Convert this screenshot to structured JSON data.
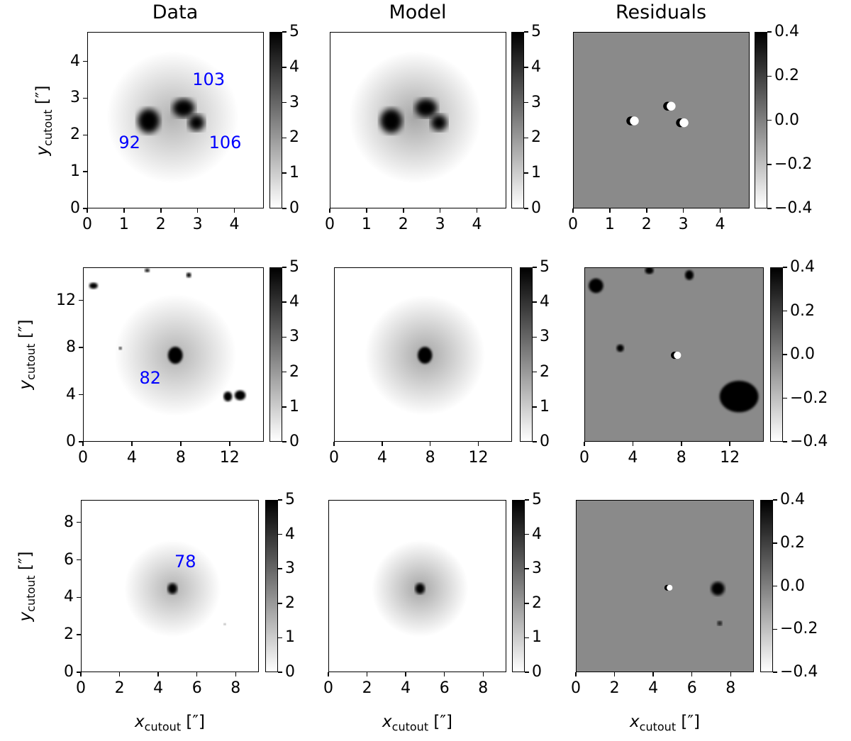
{
  "columns": [
    "Data",
    "Model",
    "Residuals"
  ],
  "axis": {
    "y_var": "y",
    "x_var": "x",
    "sub": "cutout",
    "unit": "[″]"
  },
  "colors": {
    "label": "#0000ff",
    "residual_bg": "#8a8a8a"
  },
  "chart_data": {
    "type": "heatmap",
    "rows": [
      {
        "xticks": [
          "0",
          "1",
          "2",
          "3",
          "4"
        ],
        "xvals": [
          0,
          1,
          2,
          3,
          4
        ],
        "yticks": [
          "0",
          "1",
          "2",
          "3",
          "4"
        ],
        "yvals": [
          0,
          1,
          2,
          3,
          4
        ],
        "range": [
          0,
          4.8
        ],
        "labels": [
          {
            "text": "103",
            "x": 3.3,
            "y": 3.5
          },
          {
            "text": "92",
            "x": 1.15,
            "y": 1.8
          },
          {
            "text": "106",
            "x": 3.75,
            "y": 1.8
          }
        ],
        "sources": [
          {
            "x": 1.65,
            "y": 2.4,
            "rx": 0.3,
            "ry": 0.33
          },
          {
            "x": 2.6,
            "y": 2.75,
            "rx": 0.3,
            "ry": 0.25
          },
          {
            "x": 2.95,
            "y": 2.35,
            "rx": 0.22,
            "ry": 0.22
          }
        ],
        "residual_spots": [
          {
            "x": 1.6,
            "y": 2.4,
            "r": 0.12
          },
          {
            "x": 2.6,
            "y": 2.8,
            "r": 0.12
          },
          {
            "x": 2.95,
            "y": 2.35,
            "r": 0.12
          }
        ],
        "halo": {
          "x": 2.3,
          "y": 2.5,
          "r": 1.8
        }
      },
      {
        "xticks": [
          "0",
          "4",
          "8",
          "12"
        ],
        "xvals": [
          0,
          4,
          8,
          12
        ],
        "yticks": [
          "0",
          "4",
          "8",
          "12"
        ],
        "yvals": [
          0,
          4,
          8,
          12
        ],
        "range": [
          0,
          14.8
        ],
        "labels": [
          {
            "text": "82",
            "x": 5.5,
            "y": 5.4
          }
        ],
        "sources": [
          {
            "x": 7.5,
            "y": 7.4,
            "rx": 0.6,
            "ry": 0.7
          }
        ],
        "extra_sources": [
          {
            "x": 11.8,
            "y": 3.9,
            "rx": 0.35,
            "ry": 0.4
          },
          {
            "x": 12.8,
            "y": 4.0,
            "rx": 0.45,
            "ry": 0.4
          },
          {
            "x": 0.8,
            "y": 13.3,
            "rx": 0.35,
            "ry": 0.25
          },
          {
            "x": 5.2,
            "y": 14.6,
            "rx": 0.2,
            "ry": 0.15
          },
          {
            "x": 8.6,
            "y": 14.2,
            "rx": 0.2,
            "ry": 0.2
          },
          {
            "x": 3.0,
            "y": 8.0,
            "rx": 0.12,
            "ry": 0.12
          }
        ],
        "residual_spots": [
          {
            "x": 7.5,
            "y": 7.4,
            "r": 0.3
          }
        ],
        "residual_extra": [
          {
            "x": 12.7,
            "y": 3.9,
            "rx": 1.6,
            "ry": 1.3
          },
          {
            "x": 0.9,
            "y": 13.3,
            "rx": 0.6,
            "ry": 0.6
          },
          {
            "x": 5.3,
            "y": 14.6,
            "rx": 0.35,
            "ry": 0.3
          },
          {
            "x": 8.6,
            "y": 14.2,
            "rx": 0.35,
            "ry": 0.4
          },
          {
            "x": 2.9,
            "y": 8.0,
            "rx": 0.3,
            "ry": 0.3
          }
        ],
        "halo": {
          "x": 7.5,
          "y": 7.4,
          "r": 5
        }
      },
      {
        "xticks": [
          "0",
          "2",
          "4",
          "6",
          "8"
        ],
        "xvals": [
          0,
          2,
          4,
          6,
          8
        ],
        "yticks": [
          "0",
          "2",
          "4",
          "6",
          "8"
        ],
        "yvals": [
          0,
          2,
          4,
          6,
          8
        ],
        "range": [
          0,
          9.2
        ],
        "labels": [
          {
            "text": "78",
            "x": 5.4,
            "y": 5.9
          }
        ],
        "sources": [
          {
            "x": 4.7,
            "y": 4.5,
            "rx": 0.25,
            "ry": 0.28
          }
        ],
        "extra_sources": [
          {
            "x": 7.4,
            "y": 2.6,
            "rx": 0.05,
            "ry": 0.05
          }
        ],
        "residual_spots": [
          {
            "x": 4.75,
            "y": 4.55,
            "r": 0.15
          }
        ],
        "residual_extra": [
          {
            "x": 7.3,
            "y": 4.5,
            "rx": 0.35,
            "ry": 0.35
          },
          {
            "x": 7.4,
            "y": 2.65,
            "rx": 0.12,
            "ry": 0.12
          }
        ],
        "halo": {
          "x": 4.7,
          "y": 4.5,
          "r": 2.5
        }
      }
    ],
    "colorbars": {
      "data_model": {
        "ticks": [
          "0",
          "1",
          "2",
          "3",
          "4",
          "5"
        ],
        "vals": [
          0,
          1,
          2,
          3,
          4,
          5
        ],
        "range": [
          0,
          5
        ]
      },
      "residuals": {
        "ticks": [
          "−0.4",
          "−0.2",
          "0.0",
          "0.2",
          "0.4"
        ],
        "vals": [
          -0.4,
          -0.2,
          0,
          0.2,
          0.4
        ],
        "range": [
          -0.4,
          0.4
        ]
      }
    }
  }
}
